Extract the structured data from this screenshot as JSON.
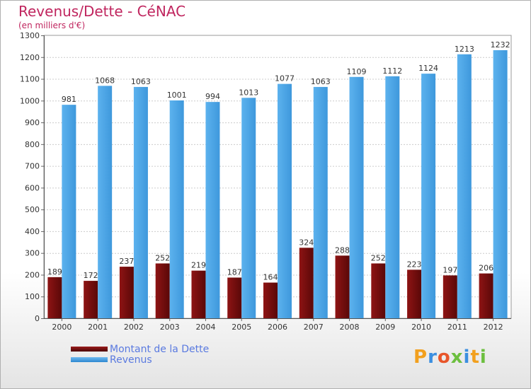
{
  "header": {
    "title": "Revenus/Dette - CéNAC",
    "subtitle": "(en milliers d'€)"
  },
  "legend": {
    "items": [
      {
        "label": "Montant de la Dette",
        "color": "#7a0f0f"
      },
      {
        "label": "Revenus",
        "color": "#4ea6e8"
      }
    ]
  },
  "logo": {
    "text": "Proxiti",
    "colors": [
      "#f2a01e",
      "#3b8fe0",
      "#e8552a",
      "#6cbf3f",
      "#3b8fe0",
      "#f2a01e",
      "#6cbf3f"
    ]
  },
  "chart_data": {
    "type": "bar",
    "title": "Revenus/Dette - CéNAC",
    "subtitle": "(en milliers d'€)",
    "categories": [
      "2000",
      "2001",
      "2002",
      "2003",
      "2004",
      "2005",
      "2006",
      "2007",
      "2008",
      "2009",
      "2010",
      "2011",
      "2012"
    ],
    "series": [
      {
        "name": "Montant de la Dette",
        "color": "#7a0f0f",
        "values": [
          189,
          172,
          237,
          252,
          219,
          187,
          164,
          324,
          288,
          252,
          223,
          197,
          206
        ]
      },
      {
        "name": "Revenus",
        "color": "#4ea6e8",
        "values": [
          981,
          1068,
          1063,
          1001,
          994,
          1013,
          1077,
          1063,
          1109,
          1112,
          1124,
          1213,
          1232
        ]
      }
    ],
    "ylim": [
      0,
      1300
    ],
    "yticks": [
      0,
      100,
      200,
      300,
      400,
      500,
      600,
      700,
      800,
      900,
      1000,
      1100,
      1200,
      1300
    ],
    "grid": true,
    "legend_position": "bottom-left"
  }
}
